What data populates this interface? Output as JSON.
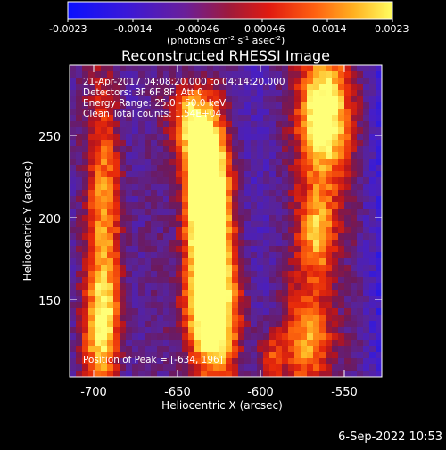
{
  "colorbar": {
    "ticks": [
      "-0.0023",
      "-0.0014",
      "-0.00046",
      "0.00046",
      "0.0014",
      "0.0023"
    ],
    "unit_label": "(photons cm",
    "unit_exp1": "-2",
    "unit_mid1": " s",
    "unit_exp2": "-1",
    "unit_mid2": " asec",
    "unit_exp3": "-2",
    "unit_end": ")"
  },
  "title": "Reconstructed RHESSI Image",
  "info": {
    "line1": "21-Apr-2017 04:08:20.000 to 04:14:20.000",
    "line2": "Detectors: 3F 6F 8F, Att 0",
    "line3": "Energy Range: 25.0 - 50.0 keV",
    "line4": "Clean     Total counts: 1.54E+04"
  },
  "peak_label": "Position of Peak = [-634, 196]",
  "xaxis": {
    "label": "Heliocentric X (arcsec)",
    "ticks": [
      "-700",
      "-650",
      "-600",
      "-550"
    ]
  },
  "yaxis": {
    "label": "Heliocentric Y (arcsec)",
    "ticks": [
      "250",
      "200",
      "150"
    ]
  },
  "footer_date": "6-Sep-2022 10:53",
  "colors": {
    "background": "#000000",
    "text": "#ffffff",
    "cmap_low": "#1010ff",
    "cmap_mid": "#7a1fa8",
    "cmap_high": "#ffff40"
  }
}
